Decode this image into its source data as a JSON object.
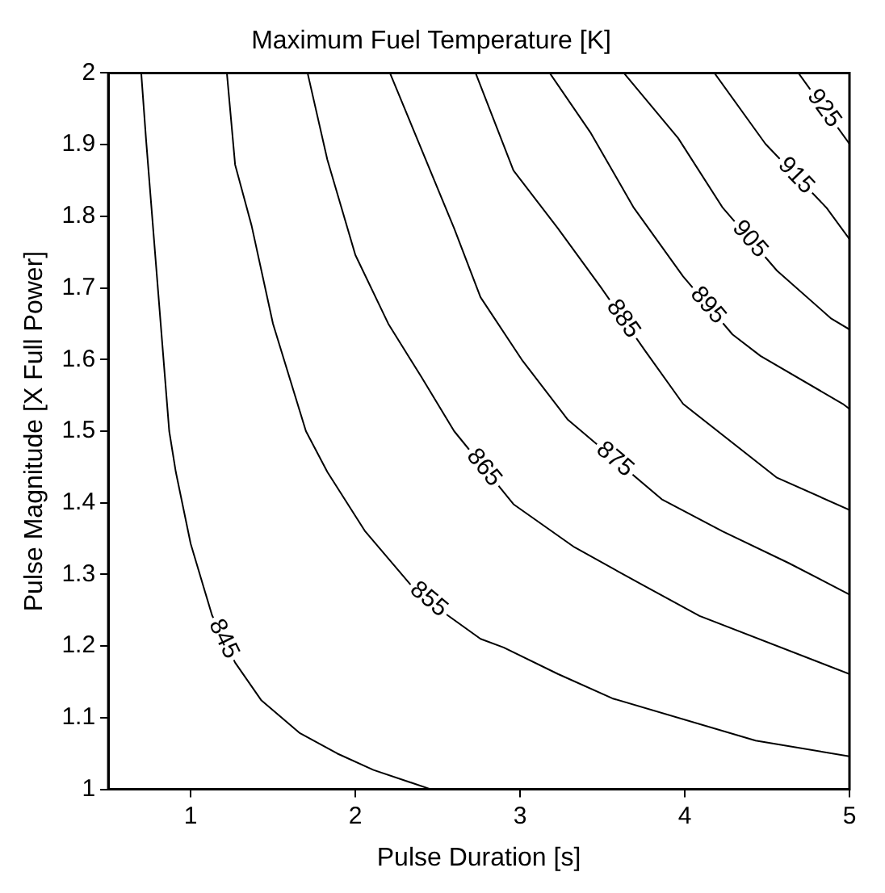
{
  "chart_data": {
    "type": "line",
    "title": "Maximum Fuel Temperature [K]",
    "xlabel": "Pulse Duration [s]",
    "ylabel": "Pulse Magnitude [X Full Power]",
    "xlim": [
      0.5,
      5
    ],
    "xticks": [
      1,
      2,
      3,
      4,
      5
    ],
    "ylim": [
      1,
      2
    ],
    "yticks": [
      1,
      1.1,
      1.2,
      1.3,
      1.4,
      1.5,
      1.6,
      1.7,
      1.8,
      1.9,
      2
    ],
    "grid": false,
    "legend": false,
    "marker": "none",
    "line_style": "solid",
    "series": [
      {
        "name": "845",
        "color": "#000000",
        "x": [
          0.7,
          0.73,
          0.87,
          0.91,
          1.0,
          1.13,
          1.27,
          1.43,
          1.66,
          1.89,
          2.11,
          2.46
        ],
        "values": [
          2.0,
          1.905,
          1.5,
          1.443,
          1.343,
          1.243,
          1.177,
          1.124,
          1.079,
          1.05,
          1.027,
          1.0
        ]
      },
      {
        "name": "855",
        "color": "#000000",
        "x": [
          1.22,
          1.27,
          1.37,
          1.5,
          1.7,
          1.83,
          2.06,
          2.33,
          2.56,
          2.76,
          2.9,
          3.23,
          3.56,
          4.43,
          5.0
        ],
        "values": [
          2.0,
          1.872,
          1.787,
          1.65,
          1.5,
          1.443,
          1.36,
          1.287,
          1.243,
          1.21,
          1.198,
          1.161,
          1.127,
          1.068,
          1.046
        ]
      },
      {
        "name": "865",
        "color": "#000000",
        "x": [
          1.71,
          1.83,
          2.0,
          2.2,
          2.4,
          2.6,
          2.96,
          3.33,
          3.73,
          4.09,
          5.0
        ],
        "values": [
          2.0,
          1.879,
          1.746,
          1.65,
          1.576,
          1.5,
          1.398,
          1.338,
          1.287,
          1.242,
          1.161
        ]
      },
      {
        "name": "875",
        "color": "#000000",
        "x": [
          2.21,
          2.6,
          2.76,
          3.01,
          3.29,
          3.86,
          4.23,
          4.63,
          5.0
        ],
        "values": [
          2.0,
          1.783,
          1.687,
          1.6,
          1.516,
          1.405,
          1.36,
          1.316,
          1.272
        ]
      },
      {
        "name": "885",
        "color": "#000000",
        "x": [
          2.73,
          2.96,
          3.23,
          3.49,
          3.76,
          3.99,
          4.56,
          5.0
        ],
        "values": [
          2.0,
          1.864,
          1.783,
          1.701,
          1.612,
          1.538,
          1.435,
          1.39
        ]
      },
      {
        "name": "895",
        "color": "#000000",
        "x": [
          3.18,
          3.43,
          3.69,
          3.99,
          4.29,
          4.46,
          4.96,
          5.0
        ],
        "values": [
          2.0,
          1.916,
          1.812,
          1.716,
          1.635,
          1.605,
          1.538,
          1.531
        ]
      },
      {
        "name": "905",
        "color": "#000000",
        "x": [
          3.63,
          3.96,
          4.23,
          4.56,
          4.89,
          5.0
        ],
        "values": [
          2.0,
          1.909,
          1.812,
          1.724,
          1.657,
          1.642
        ]
      },
      {
        "name": "915",
        "color": "#000000",
        "x": [
          4.18,
          4.49,
          4.86,
          5.0
        ],
        "values": [
          2.0,
          1.901,
          1.812,
          1.768
        ]
      },
      {
        "name": "925",
        "color": "#000000",
        "x": [
          4.69,
          5.0
        ],
        "values": [
          2.0,
          1.901
        ]
      }
    ]
  }
}
